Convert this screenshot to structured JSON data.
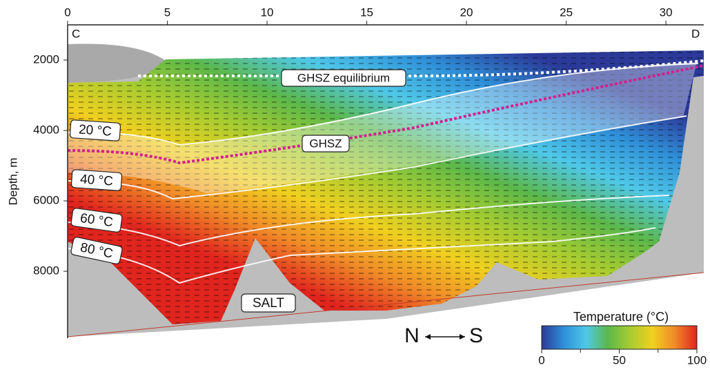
{
  "chart_data": {
    "type": "section",
    "y_label": "Depth, m",
    "xlim": [
      0,
      31.9
    ],
    "xticks": [
      0,
      5,
      10,
      15,
      20,
      25,
      30
    ],
    "ylim": [
      1000,
      9900
    ],
    "yticks": [
      2000,
      4000,
      6000,
      8000
    ],
    "ends": [
      "C",
      "D"
    ],
    "annotations": [
      "GHSZ equilibrium",
      "GHSZ",
      "SALT"
    ],
    "isotherm_labels": [
      "20 °C",
      "40 °C",
      "60 °C",
      "80 °C"
    ],
    "direction": [
      "N",
      "S"
    ],
    "colormap": [
      "#2b3a98",
      "#2f8fd8",
      "#4fc8e8",
      "#5cb84a",
      "#a8cc30",
      "#f0d020",
      "#f08a28",
      "#e0241e"
    ],
    "colorbar": {
      "title": "Temperature (°C)",
      "lim": [
        0,
        100
      ],
      "ticks": [
        0,
        50,
        100
      ],
      "minor_ticks": [
        25,
        75
      ]
    }
  }
}
